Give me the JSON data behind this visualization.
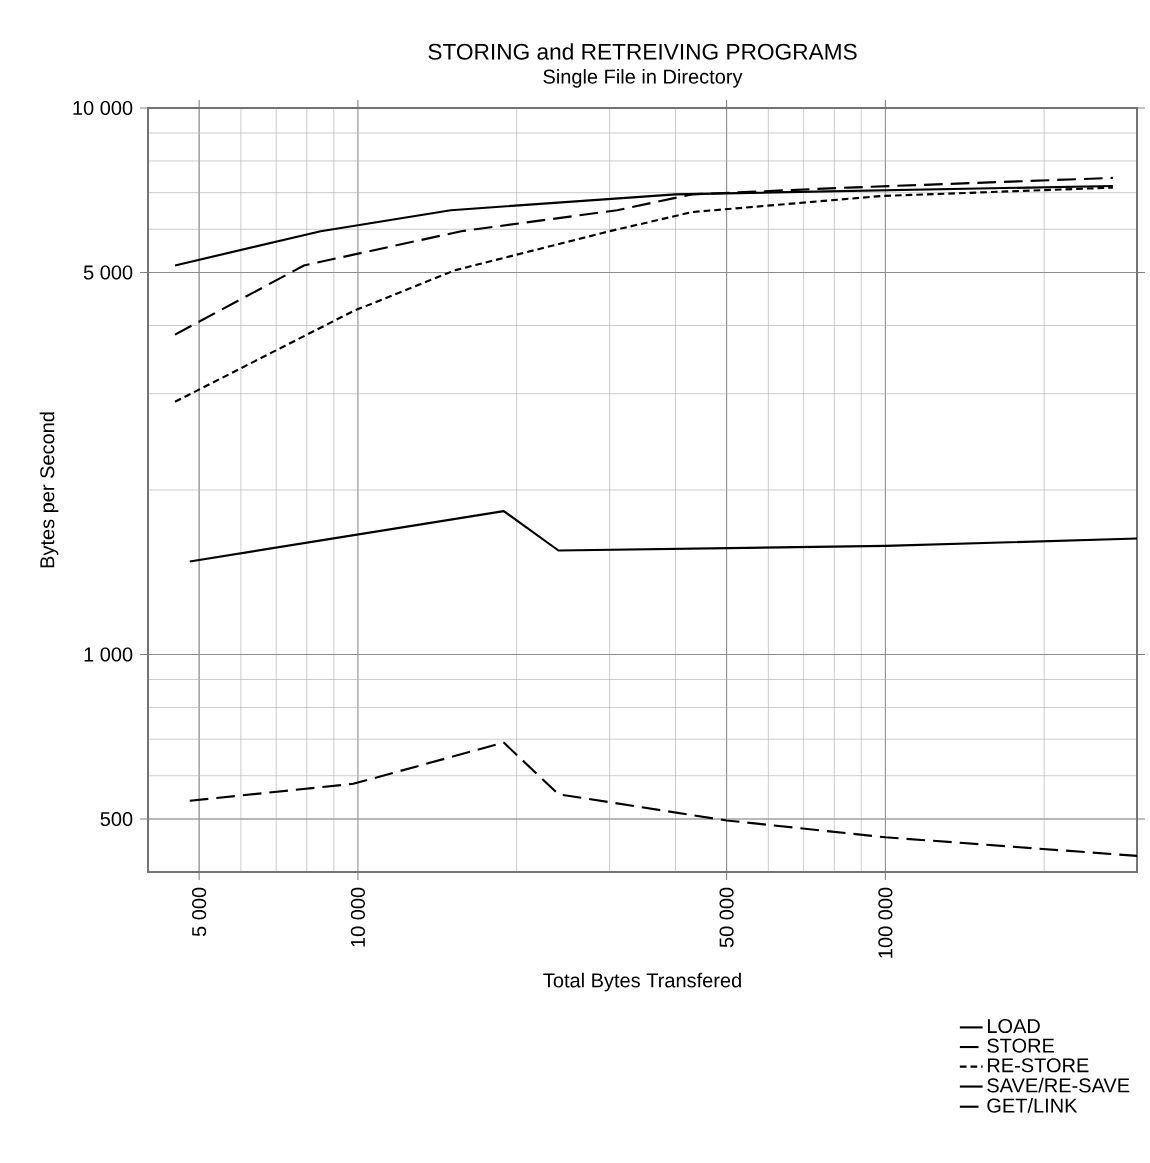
{
  "chart_data": {
    "type": "line",
    "title": "STORING and RETREIVING PROGRAMS",
    "subtitle": "Single File in Directory",
    "xlabel": "Total Bytes Transfered",
    "ylabel": "Bytes per Second",
    "log": "xy",
    "grid": true,
    "legend": "bottom right",
    "xlim": [
      4000,
      300000
    ],
    "ylim": [
      400,
      10000
    ],
    "xticks": [
      {
        "value": 5000,
        "label": "5 000"
      },
      {
        "value": 10000,
        "label": "10 000"
      },
      {
        "value": 50000,
        "label": "50 000"
      },
      {
        "value": 100000,
        "label": "100 000"
      }
    ],
    "yticks": [
      500,
      {
        "value": 1000,
        "label": "1 000"
      },
      {
        "value": 5000,
        "label": "5 000"
      },
      {
        "value": 10000,
        "label": "10 000"
      }
    ],
    "series": [
      {
        "name": "LOAD",
        "color": "#000000",
        "line_style": "solid",
        "x": [
          4500,
          8500,
          15000,
          40000,
          270000
        ],
        "values": [
          5150,
          5950,
          6500,
          6950,
          7200
        ]
      },
      {
        "name": "STORE",
        "color": "#000000",
        "line_style": "dashed",
        "x": [
          4500,
          7900,
          15700,
          31000,
          43000,
          85000,
          270000
        ],
        "values": [
          3850,
          5150,
          5950,
          6500,
          6950,
          7150,
          7450
        ]
      },
      {
        "name": "RE-STORE",
        "color": "#000000",
        "line_style": "dotted",
        "x": [
          4500,
          9800,
          15300,
          30000,
          43000,
          98000,
          270000
        ],
        "values": [
          2900,
          4250,
          5050,
          5950,
          6450,
          6900,
          7150
        ]
      },
      {
        "name": "SAVE/RE-SAVE",
        "color": "#000000",
        "line_style": "solid",
        "x": [
          4800,
          18900,
          24000,
          100000,
          300000
        ],
        "values": [
          1480,
          1830,
          1550,
          1580,
          1630
        ]
      },
      {
        "name": "GET/LINK",
        "color": "#000000",
        "line_style": "dashed",
        "x": [
          4800,
          9800,
          18900,
          24000,
          50000,
          100000,
          300000
        ],
        "values": [
          540,
          580,
          690,
          555,
          497,
          463,
          428
        ]
      }
    ]
  }
}
